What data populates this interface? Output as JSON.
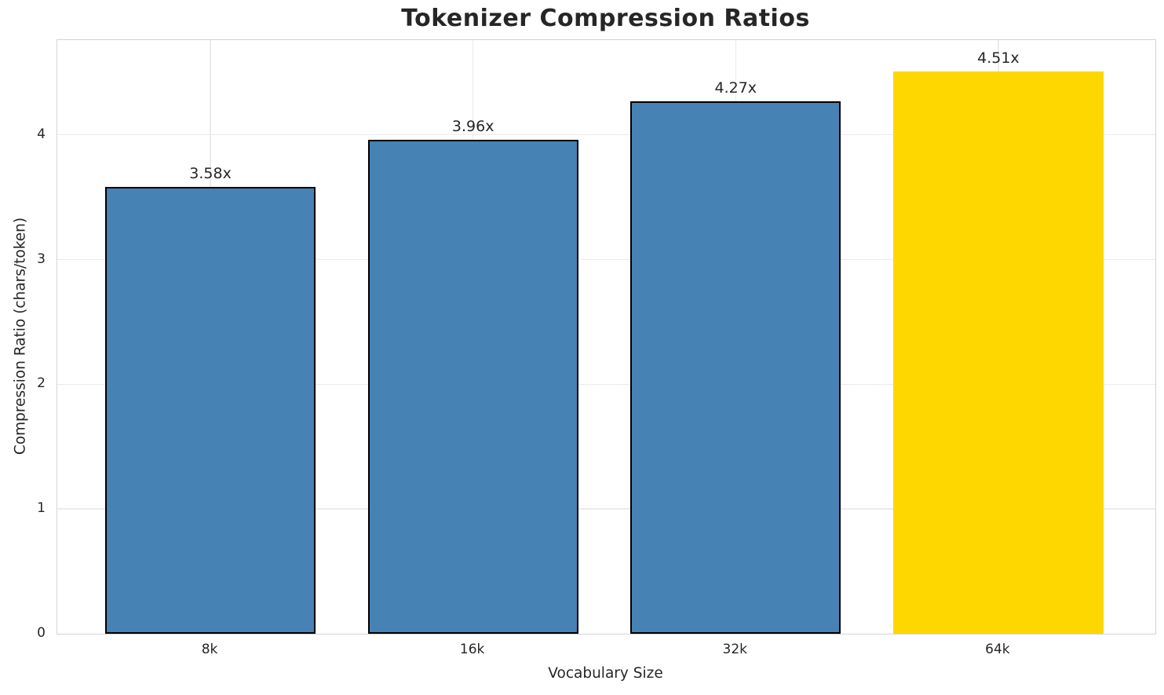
{
  "chart_data": {
    "type": "bar",
    "title": "Tokenizer Compression Ratios",
    "xlabel": "Vocabulary Size",
    "ylabel": "Compression Ratio (chars/token)",
    "categories": [
      "8k",
      "16k",
      "32k",
      "64k"
    ],
    "values": [
      3.58,
      3.96,
      4.27,
      4.51
    ],
    "bar_labels": [
      "3.58x",
      "3.96x",
      "4.27x",
      "4.51x"
    ],
    "bar_colors": [
      "#4682b4",
      "#4682b4",
      "#4682b4",
      "#ffd700"
    ],
    "bar_edge_colors": [
      "#000000",
      "#000000",
      "#000000",
      null
    ],
    "highlight_index": 3,
    "yticks": [
      0,
      1,
      2,
      3,
      4
    ],
    "ylim": [
      0,
      4.76
    ],
    "grid": "both",
    "grid_color": "#ebebeb",
    "spine_color": "#d4d4d4",
    "text_color": "#262626",
    "legend": "none"
  }
}
